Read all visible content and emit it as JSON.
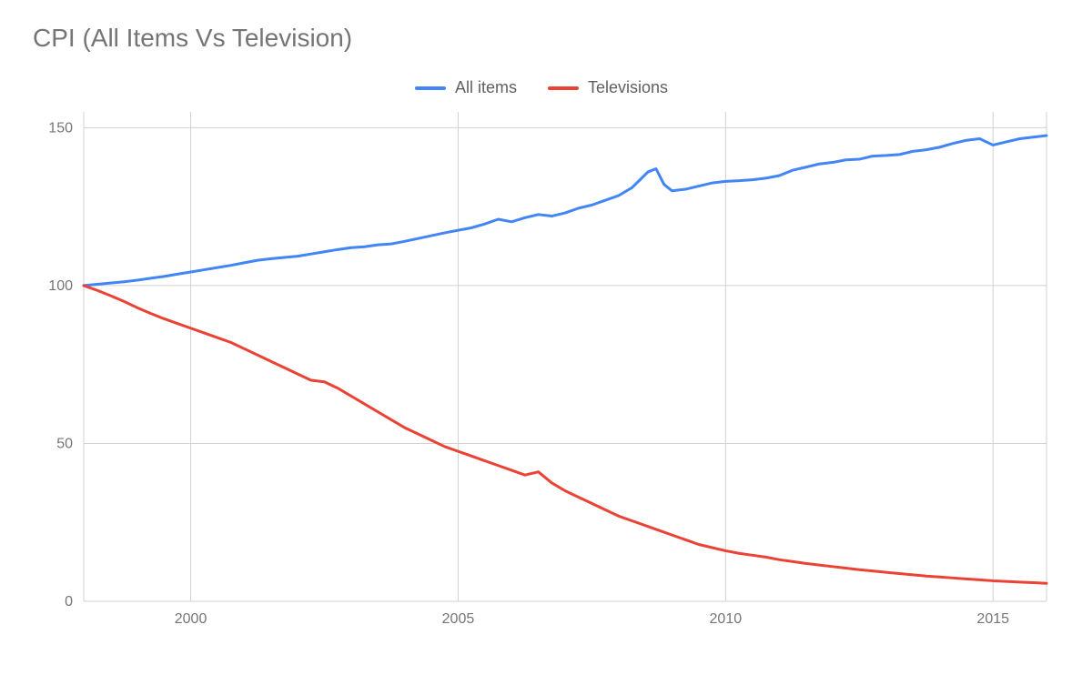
{
  "chart": {
    "type": "line",
    "title": "CPI (All Items Vs Television)",
    "title_color": "#757575",
    "title_fontsize": 28,
    "background_color": "#ffffff",
    "grid_color": "#d1d1d1",
    "axis_label_color": "#757575",
    "axis_fontsize": 16,
    "x_axis": {
      "min": 1998,
      "max": 2016,
      "ticks": [
        2000,
        2005,
        2010,
        2015
      ],
      "tick_labels": [
        "2000",
        "2005",
        "2010",
        "2015"
      ]
    },
    "y_axis": {
      "min": 0,
      "max": 155,
      "ticks": [
        0,
        50,
        100,
        150
      ],
      "tick_labels": [
        "0",
        "50",
        "100",
        "150"
      ]
    },
    "line_width": 3,
    "legend": {
      "items": [
        {
          "label": "All items",
          "color": "#4285f4"
        },
        {
          "label": "Televisions",
          "color": "#ea4335"
        }
      ]
    },
    "series": [
      {
        "name": "All items",
        "color": "#4285f4",
        "points": [
          [
            1998.0,
            100.0
          ],
          [
            1998.25,
            100.4
          ],
          [
            1998.5,
            100.8
          ],
          [
            1998.75,
            101.2
          ],
          [
            1999.0,
            101.7
          ],
          [
            1999.25,
            102.3
          ],
          [
            1999.5,
            102.9
          ],
          [
            1999.75,
            103.6
          ],
          [
            2000.0,
            104.3
          ],
          [
            2000.25,
            105.0
          ],
          [
            2000.5,
            105.7
          ],
          [
            2000.75,
            106.4
          ],
          [
            2001.0,
            107.2
          ],
          [
            2001.25,
            108.0
          ],
          [
            2001.5,
            108.5
          ],
          [
            2001.75,
            108.9
          ],
          [
            2002.0,
            109.3
          ],
          [
            2002.25,
            110.0
          ],
          [
            2002.5,
            110.7
          ],
          [
            2002.75,
            111.4
          ],
          [
            2003.0,
            112.0
          ],
          [
            2003.25,
            112.3
          ],
          [
            2003.5,
            112.9
          ],
          [
            2003.75,
            113.2
          ],
          [
            2004.0,
            114.0
          ],
          [
            2004.25,
            114.9
          ],
          [
            2004.5,
            115.8
          ],
          [
            2004.75,
            116.7
          ],
          [
            2005.0,
            117.5
          ],
          [
            2005.25,
            118.3
          ],
          [
            2005.5,
            119.5
          ],
          [
            2005.75,
            121.0
          ],
          [
            2006.0,
            120.2
          ],
          [
            2006.25,
            121.5
          ],
          [
            2006.5,
            122.5
          ],
          [
            2006.75,
            122.0
          ],
          [
            2007.0,
            123.0
          ],
          [
            2007.25,
            124.5
          ],
          [
            2007.5,
            125.5
          ],
          [
            2007.75,
            127.0
          ],
          [
            2008.0,
            128.5
          ],
          [
            2008.25,
            131.0
          ],
          [
            2008.4,
            133.5
          ],
          [
            2008.55,
            136.0
          ],
          [
            2008.7,
            137.0
          ],
          [
            2008.85,
            132.0
          ],
          [
            2009.0,
            130.0
          ],
          [
            2009.25,
            130.5
          ],
          [
            2009.5,
            131.5
          ],
          [
            2009.75,
            132.5
          ],
          [
            2010.0,
            133.0
          ],
          [
            2010.25,
            133.2
          ],
          [
            2010.5,
            133.5
          ],
          [
            2010.75,
            134.0
          ],
          [
            2011.0,
            134.8
          ],
          [
            2011.25,
            136.5
          ],
          [
            2011.5,
            137.5
          ],
          [
            2011.75,
            138.5
          ],
          [
            2012.0,
            139.0
          ],
          [
            2012.25,
            139.8
          ],
          [
            2012.5,
            140.0
          ],
          [
            2012.75,
            141.0
          ],
          [
            2013.0,
            141.2
          ],
          [
            2013.25,
            141.5
          ],
          [
            2013.5,
            142.5
          ],
          [
            2013.75,
            143.0
          ],
          [
            2014.0,
            143.8
          ],
          [
            2014.25,
            145.0
          ],
          [
            2014.5,
            146.0
          ],
          [
            2014.75,
            146.5
          ],
          [
            2015.0,
            144.5
          ],
          [
            2015.25,
            145.5
          ],
          [
            2015.5,
            146.5
          ],
          [
            2015.75,
            147.0
          ],
          [
            2016.0,
            147.5
          ]
        ]
      },
      {
        "name": "Televisions",
        "color": "#ea4335",
        "points": [
          [
            1998.0,
            100.0
          ],
          [
            1998.25,
            98.5
          ],
          [
            1998.5,
            96.8
          ],
          [
            1998.75,
            95.0
          ],
          [
            1999.0,
            93.0
          ],
          [
            1999.25,
            91.2
          ],
          [
            1999.5,
            89.5
          ],
          [
            1999.75,
            88.0
          ],
          [
            2000.0,
            86.5
          ],
          [
            2000.25,
            85.0
          ],
          [
            2000.5,
            83.5
          ],
          [
            2000.75,
            82.0
          ],
          [
            2001.0,
            80.0
          ],
          [
            2001.25,
            78.0
          ],
          [
            2001.5,
            76.0
          ],
          [
            2001.75,
            74.0
          ],
          [
            2002.0,
            72.0
          ],
          [
            2002.25,
            70.0
          ],
          [
            2002.5,
            69.5
          ],
          [
            2002.75,
            67.5
          ],
          [
            2003.0,
            65.0
          ],
          [
            2003.25,
            62.5
          ],
          [
            2003.5,
            60.0
          ],
          [
            2003.75,
            57.5
          ],
          [
            2004.0,
            55.0
          ],
          [
            2004.25,
            53.0
          ],
          [
            2004.5,
            51.0
          ],
          [
            2004.75,
            49.0
          ],
          [
            2005.0,
            47.5
          ],
          [
            2005.25,
            46.0
          ],
          [
            2005.5,
            44.5
          ],
          [
            2005.75,
            43.0
          ],
          [
            2006.0,
            41.5
          ],
          [
            2006.25,
            40.0
          ],
          [
            2006.5,
            41.0
          ],
          [
            2006.75,
            37.5
          ],
          [
            2007.0,
            35.0
          ],
          [
            2007.25,
            33.0
          ],
          [
            2007.5,
            31.0
          ],
          [
            2007.75,
            29.0
          ],
          [
            2008.0,
            27.0
          ],
          [
            2008.25,
            25.5
          ],
          [
            2008.5,
            24.0
          ],
          [
            2008.75,
            22.5
          ],
          [
            2009.0,
            21.0
          ],
          [
            2009.25,
            19.5
          ],
          [
            2009.5,
            18.0
          ],
          [
            2009.75,
            17.0
          ],
          [
            2010.0,
            16.0
          ],
          [
            2010.25,
            15.2
          ],
          [
            2010.5,
            14.6
          ],
          [
            2010.75,
            14.0
          ],
          [
            2011.0,
            13.2
          ],
          [
            2011.25,
            12.6
          ],
          [
            2011.5,
            12.0
          ],
          [
            2011.75,
            11.5
          ],
          [
            2012.0,
            11.0
          ],
          [
            2012.25,
            10.5
          ],
          [
            2012.5,
            10.0
          ],
          [
            2012.75,
            9.6
          ],
          [
            2013.0,
            9.2
          ],
          [
            2013.25,
            8.8
          ],
          [
            2013.5,
            8.4
          ],
          [
            2013.75,
            8.0
          ],
          [
            2014.0,
            7.7
          ],
          [
            2014.25,
            7.4
          ],
          [
            2014.5,
            7.1
          ],
          [
            2014.75,
            6.8
          ],
          [
            2015.0,
            6.5
          ],
          [
            2015.25,
            6.3
          ],
          [
            2015.5,
            6.1
          ],
          [
            2015.75,
            5.9
          ],
          [
            2016.0,
            5.7
          ]
        ]
      }
    ]
  }
}
